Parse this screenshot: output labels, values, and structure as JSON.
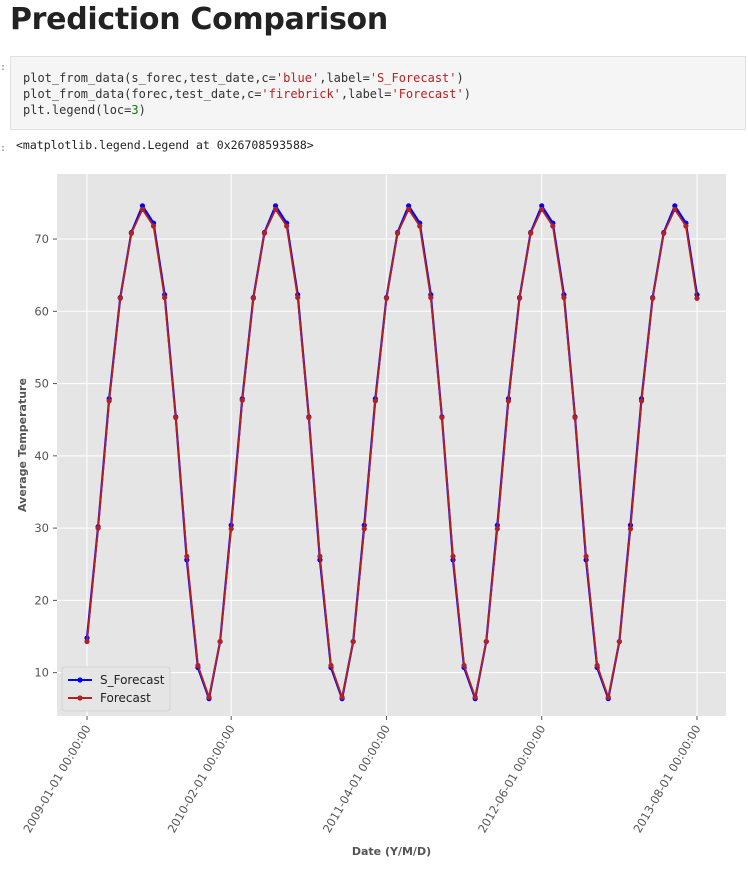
{
  "page": {
    "title": "Prediction Comparison"
  },
  "code_cell": {
    "lines": [
      {
        "parts": [
          {
            "t": "plot_from_data(s_forec,test_date,c="
          },
          {
            "t": "'blue'",
            "k": "str"
          },
          {
            "t": ",label="
          },
          {
            "t": "'S_Forecast'",
            "k": "str"
          },
          {
            "t": ")"
          }
        ]
      },
      {
        "parts": [
          {
            "t": "plot_from_data(forec,test_date,c="
          },
          {
            "t": "'firebrick'",
            "k": "str"
          },
          {
            "t": ",label="
          },
          {
            "t": "'Forecast'",
            "k": "str"
          },
          {
            "t": ")"
          }
        ]
      },
      {
        "parts": [
          {
            "t": "plt.legend(loc="
          },
          {
            "t": "3",
            "k": "num"
          },
          {
            "t": ")"
          }
        ]
      }
    ]
  },
  "output": {
    "text": "<matplotlib.legend.Legend at 0x26708593588>"
  },
  "chart_data": {
    "type": "line",
    "title": "",
    "xlabel": "Date (Y/M/D)",
    "ylabel": "Average Temperature",
    "x_start": "2009-01-01",
    "x_end": "2013-08-01",
    "x_step": "month",
    "xticks": [
      "2009-01-01 00:00:00",
      "2010-02-01 00:00:00",
      "2011-04-01 00:00:00",
      "2012-06-01 00:00:00",
      "2013-08-01 00:00:00"
    ],
    "yticks": [
      10,
      20,
      30,
      40,
      50,
      60,
      70
    ],
    "ylim": [
      4,
      79
    ],
    "grid": true,
    "legend_position": "lower-left",
    "series": [
      {
        "name": "S_Forecast",
        "color": "#0000ff",
        "values": [
          14.8,
          30.2,
          47.9,
          61.9,
          70.9,
          74.6,
          72.2,
          62.3,
          45.4,
          25.6,
          10.7,
          6.4,
          14.3,
          30.4,
          47.9,
          61.9,
          70.9,
          74.6,
          72.2,
          62.3,
          45.4,
          25.6,
          10.7,
          6.4,
          14.3,
          30.4,
          47.9,
          61.9,
          70.9,
          74.6,
          72.2,
          62.3,
          45.4,
          25.6,
          10.7,
          6.4,
          14.3,
          30.4,
          47.9,
          61.9,
          70.9,
          74.6,
          72.2,
          62.3,
          45.4,
          25.6,
          10.7,
          6.4,
          14.3,
          30.4,
          47.9,
          61.9,
          70.9,
          74.6,
          72.2,
          62.3
        ]
      },
      {
        "name": "Forecast",
        "color": "#b22222",
        "values": [
          14.3,
          30.0,
          47.6,
          61.8,
          70.8,
          74.1,
          71.8,
          61.9,
          45.3,
          26.1,
          11.0,
          6.6,
          14.3,
          29.9,
          47.7,
          61.8,
          70.8,
          74.1,
          71.8,
          61.9,
          45.3,
          26.1,
          11.0,
          6.6,
          14.3,
          29.9,
          47.6,
          61.8,
          70.8,
          74.1,
          71.8,
          61.9,
          45.3,
          26.1,
          11.0,
          6.6,
          14.3,
          29.9,
          47.6,
          61.8,
          70.8,
          74.1,
          71.8,
          61.9,
          45.3,
          26.1,
          11.0,
          6.6,
          14.3,
          29.9,
          47.6,
          61.8,
          70.8,
          74.1,
          71.8,
          61.8
        ]
      }
    ]
  }
}
